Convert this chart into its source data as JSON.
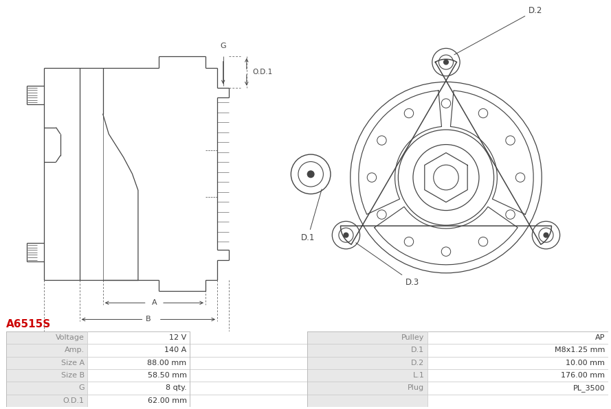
{
  "title": "A6515S",
  "title_color": "#cc0000",
  "bg_color": "#ffffff",
  "table_data": {
    "left_labels": [
      "Voltage",
      "Amp.",
      "Size A",
      "Size B",
      "G",
      "O.D.1"
    ],
    "left_values": [
      "12 V",
      "140 A",
      "88.00 mm",
      "58.50 mm",
      "8 qty.",
      "62.00 mm"
    ],
    "right_labels": [
      "Pulley",
      "D.1",
      "D.2",
      "L.1",
      "Plug",
      ""
    ],
    "right_values": [
      "AP",
      "M8x1.25 mm",
      "10.00 mm",
      "176.00 mm",
      "PL_3500",
      ""
    ]
  },
  "row_colors": [
    "#e8e8e8",
    "#ffffff"
  ],
  "label_color": "#888888",
  "value_color": "#333333",
  "line_color": "#444444",
  "annotation_color": "#444444"
}
